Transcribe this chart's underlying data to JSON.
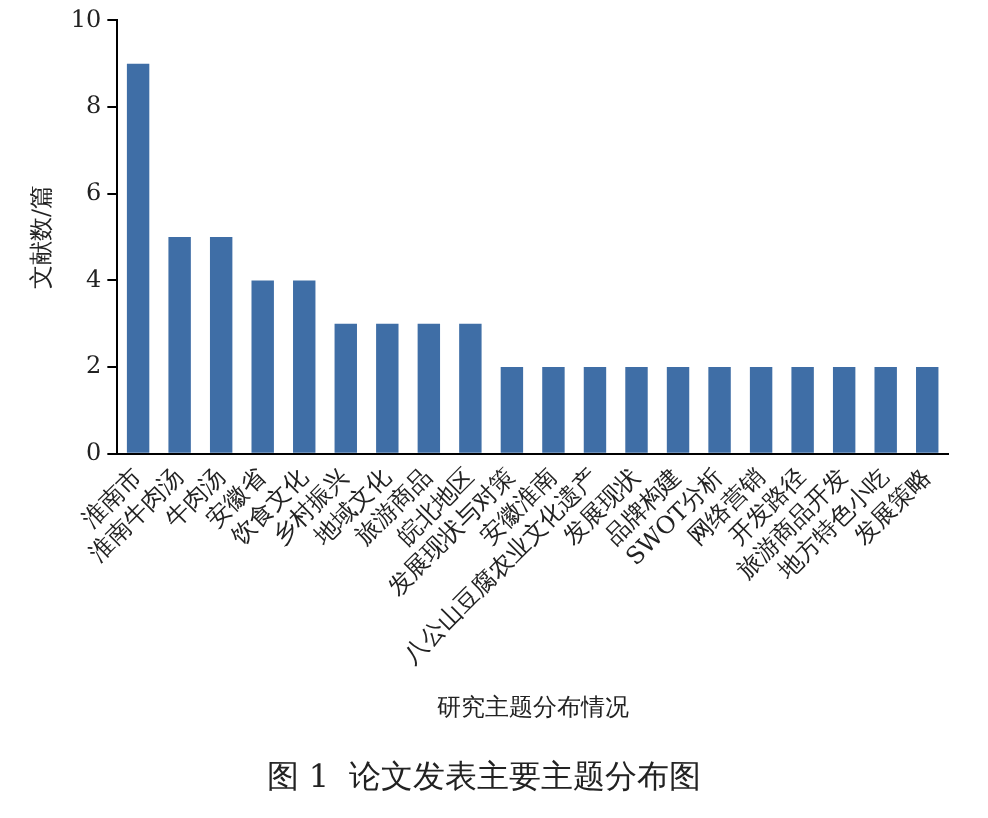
{
  "chart_data": {
    "type": "bar",
    "title": "图 1  论文发表主要主题分布图",
    "xlabel": "研究主题分布情况",
    "ylabel": "文献数/篇",
    "categories": [
      "淮南市",
      "淮南牛肉汤",
      "牛肉汤",
      "安徽省",
      "饮食文化",
      "乡村振兴",
      "地域文化",
      "旅游商品",
      "皖北地区",
      "发展现状与对策",
      "安徽淮南",
      "八公山豆腐农业文化遗产",
      "发展现状",
      "品牌构建",
      "SWOT分析",
      "网络营销",
      "开发路径",
      "旅游商品开发",
      "地方特色小吃",
      "发展策略"
    ],
    "values": [
      9,
      5,
      5,
      4,
      4,
      3,
      3,
      3,
      3,
      2,
      2,
      2,
      2,
      2,
      2,
      2,
      2,
      2,
      2,
      2
    ],
    "color": "#3f6ea6",
    "ylim": [
      0,
      10
    ],
    "yticks": [
      0,
      2,
      4,
      6,
      8,
      10
    ],
    "grid": false,
    "legend": false
  }
}
